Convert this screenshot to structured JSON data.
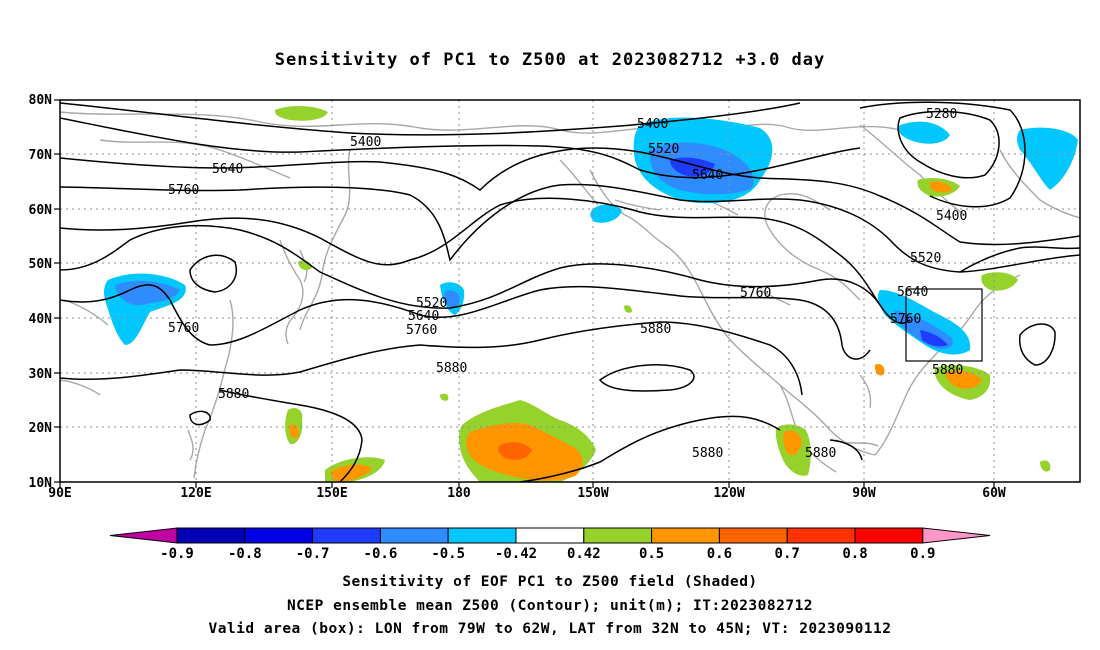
{
  "title": "Sensitivity of PC1 to Z500 at 2023082712 +3.0 day",
  "captions": {
    "line1": "Sensitivity of EOF PC1 to Z500 field (Shaded)",
    "line2": "NCEP ensemble mean Z500 (Contour); unit(m); IT:2023082712",
    "line3": "Valid area (box): LON from 79W to 62W, LAT from 32N to 45N; VT: 2023090112"
  },
  "map": {
    "lat_labels": [
      "80N",
      "70N",
      "60N",
      "50N",
      "40N",
      "30N",
      "20N",
      "10N"
    ],
    "lon_labels": [
      "90E",
      "120E",
      "150E",
      "180",
      "150W",
      "120W",
      "90W",
      "60W"
    ],
    "contour_labels": [
      "5280",
      "5400",
      "5400",
      "5400",
      "5520",
      "5520",
      "5520",
      "5640",
      "5640",
      "5640",
      "5640",
      "5760",
      "5760",
      "5760",
      "5760",
      "5760",
      "5880",
      "5880",
      "5880",
      "5880",
      "5880",
      "5880"
    ],
    "valid_box": {
      "lon_from": "79W",
      "lon_to": "62W",
      "lat_from": "32N",
      "lat_to": "45N"
    }
  },
  "colorbar": {
    "labels": [
      "-0.9",
      "-0.8",
      "-0.7",
      "-0.6",
      "-0.5",
      "-0.42",
      "0.42",
      "0.5",
      "0.6",
      "0.7",
      "0.8",
      "0.9"
    ],
    "colors": [
      "#c000a0",
      "#0000b4",
      "#0000e6",
      "#1e3cff",
      "#2f8cff",
      "#00c8ff",
      "#ffffff",
      "#96d22c",
      "#ff9600",
      "#ff6400",
      "#ff3200",
      "#ff0000",
      "#ff96c8"
    ]
  }
}
